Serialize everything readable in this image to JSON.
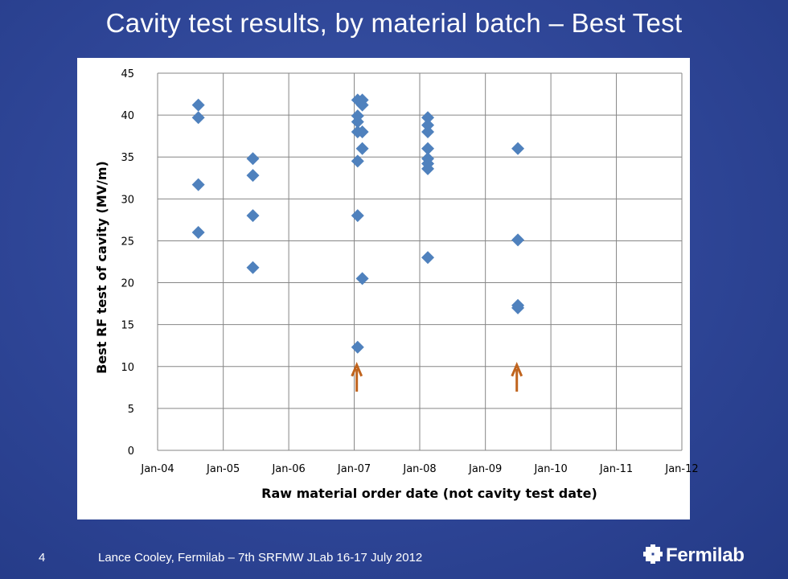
{
  "slide": {
    "title": "Cavity test results, by material batch – Best Test",
    "page_number": "4",
    "footer": "Lance Cooley, Fermilab – 7th SRFMW JLab 16-17 July 2012",
    "logo_text": "Fermilab",
    "logo_icon": "fermilab-logo-icon"
  },
  "chart_data": {
    "type": "scatter",
    "xlabel": "Raw material order date (not cavity test date)",
    "ylabel": "Best RF test of cavity (MV/m)",
    "ylim": [
      0,
      45
    ],
    "xlim": [
      "2004-01-01",
      "2012-01-01"
    ],
    "yticks": [
      0,
      5,
      10,
      15,
      20,
      25,
      30,
      35,
      40,
      45
    ],
    "xticks": [
      {
        "date": "2004-01-01",
        "label": "Jan-04"
      },
      {
        "date": "2005-01-01",
        "label": "Jan-05"
      },
      {
        "date": "2006-01-01",
        "label": "Jan-06"
      },
      {
        "date": "2007-01-01",
        "label": "Jan-07"
      },
      {
        "date": "2008-01-01",
        "label": "Jan-08"
      },
      {
        "date": "2009-01-01",
        "label": "Jan-09"
      },
      {
        "date": "2010-01-01",
        "label": "Jan-10"
      },
      {
        "date": "2011-01-01",
        "label": "Jan-11"
      },
      {
        "date": "2012-01-01",
        "label": "Jan-12"
      }
    ],
    "grid": true,
    "legend": "none",
    "marker_color": "#4f81bd",
    "arrow_color": "#c0641e",
    "series": [
      {
        "points": [
          {
            "x": "2004-08-15",
            "y": 41.2
          },
          {
            "x": "2004-08-15",
            "y": 39.7
          },
          {
            "x": "2004-08-15",
            "y": 31.7
          },
          {
            "x": "2004-08-15",
            "y": 26.0
          },
          {
            "x": "2005-06-15",
            "y": 34.8
          },
          {
            "x": "2005-06-15",
            "y": 32.8
          },
          {
            "x": "2005-06-15",
            "y": 28.0
          },
          {
            "x": "2005-06-15",
            "y": 21.8
          },
          {
            "x": "2007-01-20",
            "y": 41.8
          },
          {
            "x": "2007-01-20",
            "y": 39.9
          },
          {
            "x": "2007-01-20",
            "y": 39.2
          },
          {
            "x": "2007-01-20",
            "y": 38.0
          },
          {
            "x": "2007-01-20",
            "y": 34.5
          },
          {
            "x": "2007-01-20",
            "y": 28.0
          },
          {
            "x": "2007-01-20",
            "y": 12.3
          },
          {
            "x": "2007-02-15",
            "y": 41.8
          },
          {
            "x": "2007-02-15",
            "y": 41.2
          },
          {
            "x": "2007-02-15",
            "y": 38.0
          },
          {
            "x": "2007-02-15",
            "y": 36.0
          },
          {
            "x": "2007-02-15",
            "y": 20.5
          },
          {
            "x": "2008-02-15",
            "y": 39.7
          },
          {
            "x": "2008-02-15",
            "y": 38.8
          },
          {
            "x": "2008-02-15",
            "y": 38.0
          },
          {
            "x": "2008-02-15",
            "y": 36.0
          },
          {
            "x": "2008-02-15",
            "y": 34.8
          },
          {
            "x": "2008-02-15",
            "y": 34.2
          },
          {
            "x": "2008-02-15",
            "y": 33.6
          },
          {
            "x": "2008-02-15",
            "y": 23.0
          },
          {
            "x": "2009-07-01",
            "y": 36.0
          },
          {
            "x": "2009-07-01",
            "y": 25.1
          },
          {
            "x": "2009-07-01",
            "y": 17.3
          },
          {
            "x": "2009-07-01",
            "y": 17.0
          }
        ]
      }
    ],
    "annotations": [
      {
        "type": "arrow-up",
        "x": "2007-01-15",
        "y_from": 7,
        "y_to": 10
      },
      {
        "type": "arrow-up",
        "x": "2009-06-25",
        "y_from": 7,
        "y_to": 10
      }
    ]
  }
}
